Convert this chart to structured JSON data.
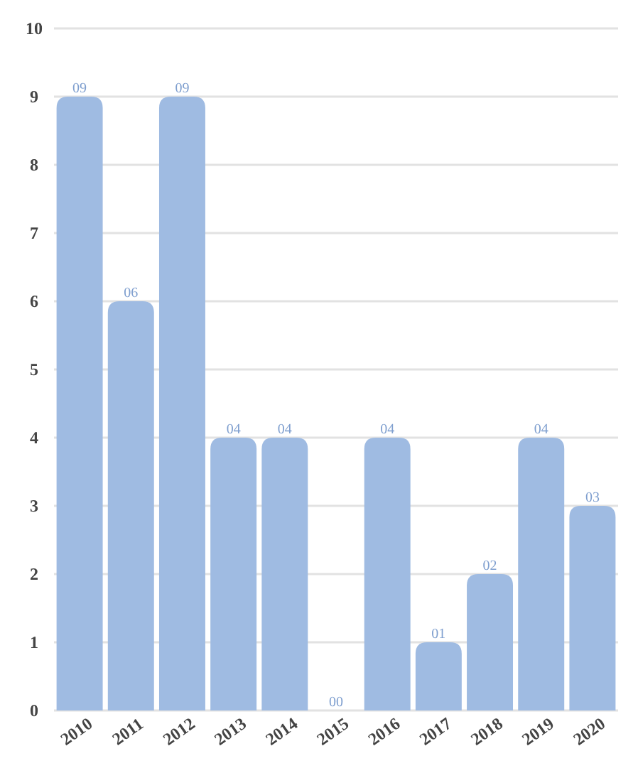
{
  "chart_data": {
    "type": "bar",
    "categories": [
      "2010",
      "2011",
      "2012",
      "2013",
      "2014",
      "2015",
      "2016",
      "2017",
      "2018",
      "2019",
      "2020"
    ],
    "values": [
      9,
      6,
      9,
      4,
      4,
      0,
      4,
      1,
      2,
      4,
      3
    ],
    "value_labels": [
      "09",
      "06",
      "09",
      "04",
      "04",
      "00",
      "04",
      "01",
      "02",
      "04",
      "03"
    ],
    "color": "#9fbbe2",
    "ylim": [
      0,
      10
    ],
    "yticks": [
      0,
      1,
      2,
      3,
      4,
      5,
      6,
      7,
      8,
      9,
      10
    ],
    "grid": "y"
  }
}
